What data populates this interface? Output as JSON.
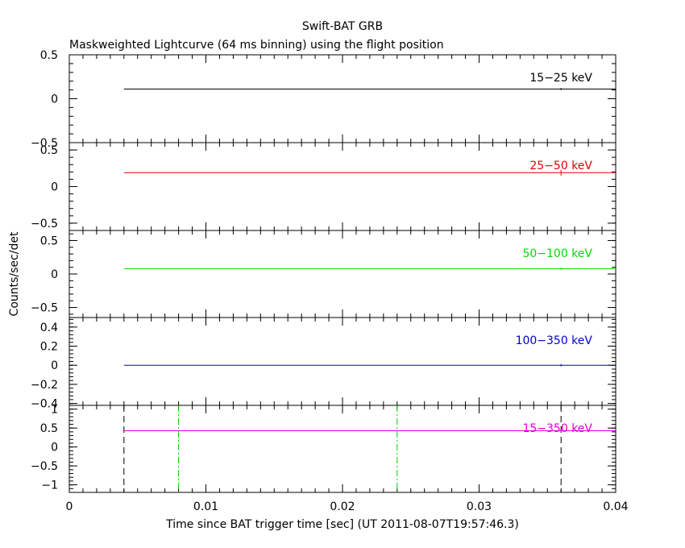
{
  "chart_data": {
    "type": "line",
    "title": "Swift-BAT GRB",
    "subtitle": "Maskweighted Lightcurve (64 ms binning) using the flight position",
    "xlabel": "Time since BAT trigger time [sec] (UT 2011-08-07T19:57:46.3)",
    "ylabel": "Counts/sec/det",
    "xlim": [
      0,
      0.04
    ],
    "xticks": [
      0,
      0.01,
      0.02,
      0.03,
      0.04
    ],
    "xtick_labels": [
      "0",
      "0.01",
      "0.02",
      "0.03",
      "0.04"
    ],
    "panels": [
      {
        "name": "15-25 keV",
        "label": "15−25 keV",
        "color": "#000000",
        "ylim": [
          -0.5,
          0.5
        ],
        "ytick_labels": [
          {
            "v": 0.5,
            "t": "0.5"
          },
          {
            "v": 0,
            "t": "0"
          },
          {
            "v": -0.5,
            "t": "−0.5"
          }
        ],
        "x": [
          0.004,
          0.04
        ],
        "y": [
          0.11,
          0.11
        ],
        "error_x": 0.036,
        "error_y": 0.012
      },
      {
        "name": "25-50 keV",
        "label": "25−50 keV",
        "color": "#dd0000",
        "ylim": [
          -0.6,
          0.6
        ],
        "ytick_labels": [
          {
            "v": 0.5,
            "t": "0.5"
          },
          {
            "v": 0,
            "t": "0"
          },
          {
            "v": -0.5,
            "t": "−0.5"
          }
        ],
        "x": [
          0.004,
          0.04
        ],
        "y": [
          0.19,
          0.19
        ],
        "error_x": 0.036,
        "error_y": 0.04
      },
      {
        "name": "50-100 keV",
        "label": "50−100 keV",
        "color": "#00dd00",
        "ylim": [
          -0.65,
          0.65
        ],
        "ytick_labels": [
          {
            "v": 0.5,
            "t": "0.5"
          },
          {
            "v": 0,
            "t": "0"
          },
          {
            "v": -0.5,
            "t": "−0.5"
          }
        ],
        "x": [
          0.004,
          0.04
        ],
        "y": [
          0.08,
          0.08
        ],
        "error_x": 0.036,
        "error_y": 0.015
      },
      {
        "name": "100-350 keV",
        "label": "100−350 keV",
        "color": "#0000cc",
        "ylim": [
          -0.42,
          0.5
        ],
        "ytick_labels": [
          {
            "v": 0.4,
            "t": "0.4"
          },
          {
            "v": 0.2,
            "t": "0.2"
          },
          {
            "v": 0,
            "t": "0"
          },
          {
            "v": -0.2,
            "t": "−0.2"
          },
          {
            "v": -0.4,
            "t": "−0.4"
          }
        ],
        "x": [
          0.004,
          0.04
        ],
        "y": [
          0.0,
          0.0
        ],
        "error_x": 0.036,
        "error_y": 0.012
      },
      {
        "name": "15-350 keV",
        "label": "15−350 keV",
        "color": "#dd00dd",
        "ylim": [
          -1.2,
          1.1
        ],
        "ytick_labels": [
          {
            "v": 1,
            "t": "1"
          },
          {
            "v": 0.5,
            "t": "0.5"
          },
          {
            "v": 0,
            "t": "0"
          },
          {
            "v": -0.5,
            "t": "−0.5"
          },
          {
            "v": -1,
            "t": "−1"
          }
        ],
        "x": [
          0.004,
          0.04
        ],
        "y": [
          0.43,
          0.43
        ],
        "error_x": 0.036,
        "error_y": 0.03,
        "vlines_dashed": [
          0.004,
          0.036
        ],
        "vlines_dashdot": [
          0.008,
          0.024
        ]
      }
    ]
  }
}
